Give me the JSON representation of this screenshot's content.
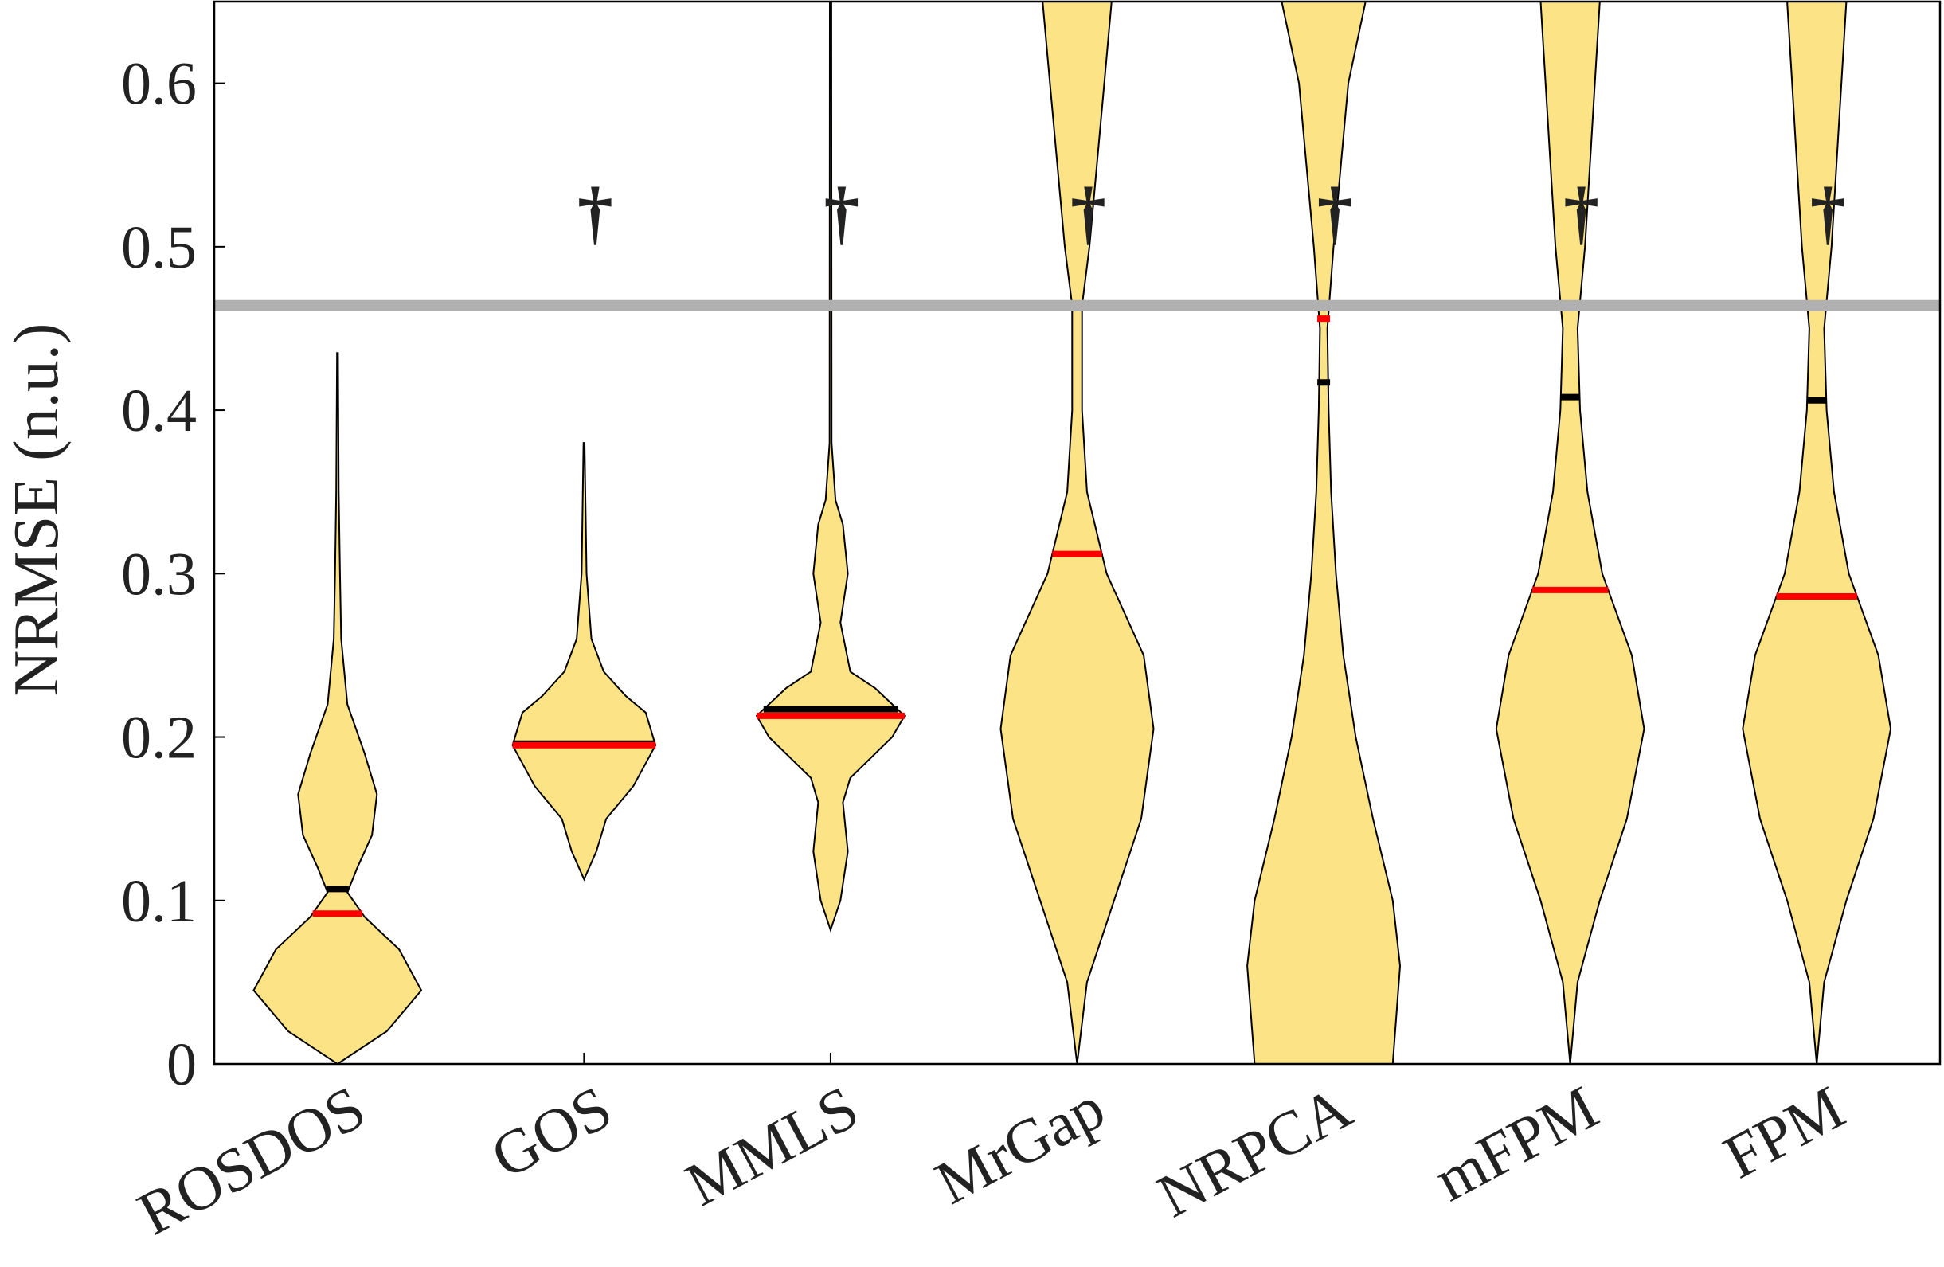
{
  "chart_data": {
    "type": "violin",
    "y_label": "NRMSE (n.u.)",
    "categories": [
      "ROSDOS",
      "GOS",
      "MMLS",
      "MrGap",
      "NRPCA",
      "mFPM",
      "FPM"
    ],
    "medians": [
      0.092,
      0.195,
      0.213,
      0.312,
      0.456,
      0.29,
      0.286
    ],
    "means": [
      0.107,
      0.196,
      0.217,
      null,
      0.417,
      0.408,
      0.406
    ],
    "median_color": "#ff0000",
    "mean_color": "#000000",
    "fill_color": "#fce386",
    "violins": [
      {
        "y": [
          0,
          0.02,
          0.045,
          0.07,
          0.09,
          0.105,
          0.12,
          0.14,
          0.165,
          0.19,
          0.22,
          0.26,
          0.3,
          0.35,
          0.435
        ],
        "halfwidth": [
          0,
          0.2,
          0.34,
          0.25,
          0.11,
          0.04,
          0.08,
          0.14,
          0.16,
          0.11,
          0.04,
          0.015,
          0.01,
          0.005,
          0.002
        ]
      },
      {
        "y": [
          0.113,
          0.13,
          0.15,
          0.17,
          0.195,
          0.215,
          0.225,
          0.24,
          0.26,
          0.3,
          0.38
        ],
        "halfwidth": [
          0,
          0.05,
          0.09,
          0.2,
          0.29,
          0.25,
          0.17,
          0.08,
          0.03,
          0.01,
          0.002
        ]
      },
      {
        "y": [
          0.082,
          0.1,
          0.13,
          0.16,
          0.175,
          0.2,
          0.213,
          0.23,
          0.24,
          0.27,
          0.3,
          0.33,
          0.345,
          0.38,
          0.65
        ],
        "halfwidth": [
          0,
          0.04,
          0.07,
          0.05,
          0.08,
          0.25,
          0.3,
          0.18,
          0.08,
          0.04,
          0.07,
          0.05,
          0.02,
          0.004,
          0.003
        ]
      },
      {
        "y": [
          0,
          0.05,
          0.1,
          0.15,
          0.205,
          0.25,
          0.3,
          0.35,
          0.4,
          0.464,
          0.5,
          0.55,
          0.6,
          0.65
        ],
        "halfwidth": [
          0,
          0.04,
          0.15,
          0.26,
          0.31,
          0.27,
          0.12,
          0.04,
          0.02,
          0.02,
          0.05,
          0.08,
          0.11,
          0.14
        ]
      },
      {
        "y": [
          0,
          0.06,
          0.1,
          0.15,
          0.2,
          0.25,
          0.3,
          0.35,
          0.4,
          0.45,
          0.5,
          0.55,
          0.6,
          0.65
        ],
        "halfwidth": [
          0.28,
          0.31,
          0.28,
          0.2,
          0.13,
          0.08,
          0.05,
          0.03,
          0.02,
          0.015,
          0.04,
          0.07,
          0.1,
          0.17
        ]
      },
      {
        "y": [
          0,
          0.05,
          0.1,
          0.15,
          0.205,
          0.25,
          0.3,
          0.35,
          0.4,
          0.45,
          0.5,
          0.55,
          0.6,
          0.65
        ],
        "halfwidth": [
          0,
          0.03,
          0.12,
          0.23,
          0.3,
          0.25,
          0.13,
          0.07,
          0.04,
          0.03,
          0.06,
          0.08,
          0.1,
          0.12
        ]
      },
      {
        "y": [
          0,
          0.05,
          0.1,
          0.15,
          0.205,
          0.25,
          0.3,
          0.35,
          0.4,
          0.45,
          0.5,
          0.55,
          0.6,
          0.65
        ],
        "halfwidth": [
          0,
          0.03,
          0.12,
          0.23,
          0.3,
          0.25,
          0.13,
          0.07,
          0.04,
          0.03,
          0.06,
          0.08,
          0.1,
          0.12
        ]
      }
    ],
    "significance": [
      null,
      "†",
      "†",
      "†",
      "†",
      "†",
      "†"
    ],
    "significance_y": 0.52,
    "reference_line": 0.464,
    "reference_color": "#b0b0b0",
    "ylim": [
      0,
      0.65
    ],
    "yticks": [
      0,
      0.1,
      0.2,
      0.3,
      0.4,
      0.5,
      0.6
    ]
  }
}
